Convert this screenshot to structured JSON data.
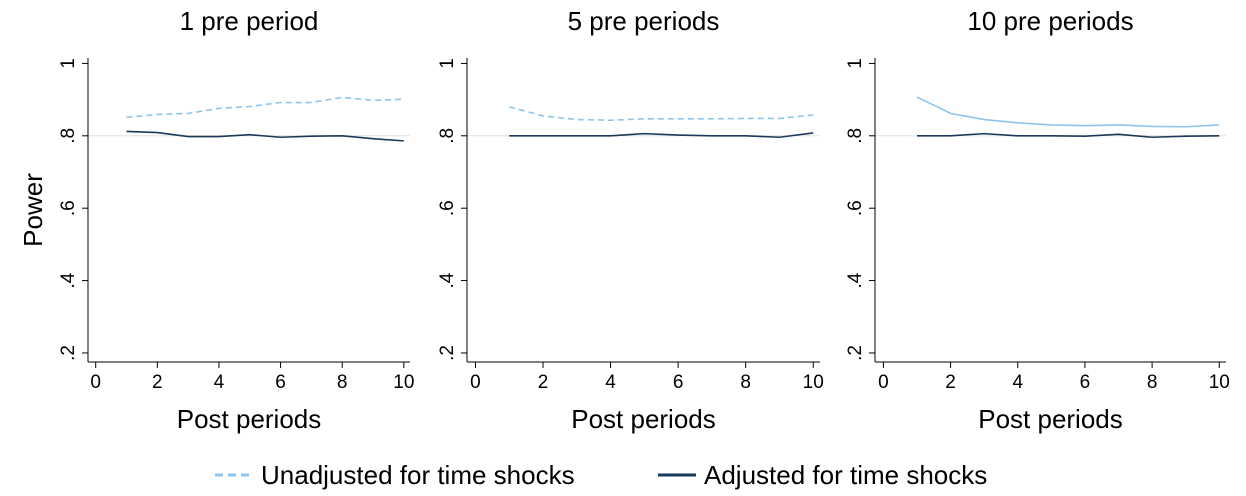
{
  "chart_data": [
    {
      "type": "line",
      "title": "1 pre period",
      "y_label": "Power",
      "x_label": "Post periods",
      "x": [
        1,
        2,
        3,
        4,
        5,
        6,
        7,
        8,
        9,
        10
      ],
      "series": [
        {
          "name": "Unadjusted for time shocks",
          "color": "#8ec5ef",
          "dashed": true,
          "values": [
            0.851,
            0.859,
            0.862,
            0.876,
            0.881,
            0.892,
            0.892,
            0.906,
            0.898,
            0.901
          ]
        },
        {
          "name": "Adjusted for time shocks",
          "color": "#1a3a5c",
          "dashed": false,
          "values": [
            0.812,
            0.809,
            0.798,
            0.798,
            0.803,
            0.796,
            0.799,
            0.8,
            0.792,
            0.786
          ]
        }
      ],
      "xlim": [
        -0.25,
        10.2
      ],
      "xticks": [
        0,
        2,
        4,
        6,
        8,
        10
      ],
      "ylim": [
        0.175,
        1.015
      ],
      "yticks": [
        {
          "value": 0.2,
          "label": ".2"
        },
        {
          "value": 0.4,
          "label": ".4"
        },
        {
          "value": 0.6,
          "label": ".6"
        },
        {
          "value": 0.8,
          "label": ".8"
        },
        1
      ],
      "hline": 0.8
    },
    {
      "type": "line",
      "title": "5 pre periods",
      "x_label": "Post periods",
      "x": [
        1,
        2,
        3,
        4,
        5,
        6,
        7,
        8,
        9,
        10
      ],
      "series": [
        {
          "name": "Unadjusted for time shocks",
          "color": "#8ec5ef",
          "dashed": true,
          "values": [
            0.88,
            0.855,
            0.845,
            0.843,
            0.847,
            0.847,
            0.847,
            0.848,
            0.848,
            0.858
          ]
        },
        {
          "name": "Adjusted for time shocks",
          "color": "#1a3a5c",
          "dashed": false,
          "values": [
            0.8,
            0.8,
            0.8,
            0.8,
            0.806,
            0.802,
            0.8,
            0.8,
            0.796,
            0.808
          ]
        }
      ],
      "xlim": [
        -0.25,
        10.2
      ],
      "xticks": [
        0,
        2,
        4,
        6,
        8,
        10
      ],
      "ylim": [
        0.175,
        1.015
      ],
      "yticks": [
        {
          "value": 0.2,
          "label": ".2"
        },
        {
          "value": 0.4,
          "label": ".4"
        },
        {
          "value": 0.6,
          "label": ".6"
        },
        {
          "value": 0.8,
          "label": ".8"
        },
        1
      ],
      "hline": 0.8
    },
    {
      "type": "line",
      "title": "10 pre periods",
      "x_label": "Post periods",
      "x": [
        1,
        2,
        3,
        4,
        5,
        6,
        7,
        8,
        9,
        10
      ],
      "series": [
        {
          "name": "Unadjusted for time shocks",
          "color": "#8ec5ef",
          "dashed": false,
          "values": [
            0.907,
            0.862,
            0.845,
            0.836,
            0.83,
            0.828,
            0.83,
            0.826,
            0.825,
            0.83
          ]
        },
        {
          "name": "Adjusted for time shocks",
          "color": "#1a3a5c",
          "dashed": false,
          "values": [
            0.8,
            0.8,
            0.806,
            0.8,
            0.8,
            0.799,
            0.804,
            0.796,
            0.799,
            0.8
          ]
        }
      ],
      "xlim": [
        -0.25,
        10.2
      ],
      "xticks": [
        0,
        2,
        4,
        6,
        8,
        10
      ],
      "ylim": [
        0.175,
        1.015
      ],
      "yticks": [
        {
          "value": 0.2,
          "label": ".2"
        },
        {
          "value": 0.4,
          "label": ".4"
        },
        {
          "value": 0.6,
          "label": ".6"
        },
        {
          "value": 0.8,
          "label": ".8"
        },
        1
      ],
      "hline": 0.8
    }
  ]
}
